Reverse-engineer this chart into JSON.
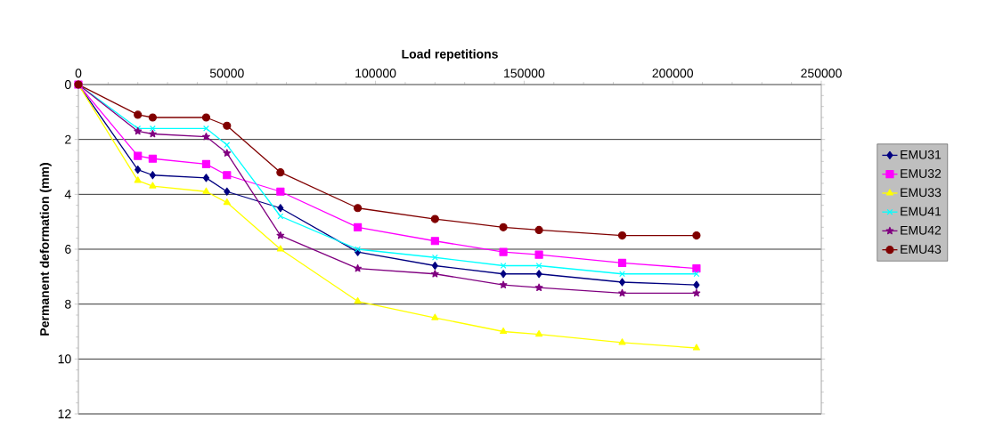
{
  "chart_data": {
    "type": "line",
    "xlabel": "Load repetitions",
    "ylabel": "Permanent deformation (mm)",
    "x": [
      0,
      20000,
      25000,
      43000,
      50000,
      68000,
      94000,
      120000,
      143000,
      155000,
      183000,
      208000
    ],
    "xlim": [
      0,
      250000
    ],
    "xticks": [
      0,
      50000,
      100000,
      150000,
      200000,
      250000
    ],
    "ylim": [
      12,
      0
    ],
    "yticks": [
      0,
      2,
      4,
      6,
      8,
      10,
      12
    ],
    "grid": "y",
    "legend": "right",
    "line_style": "solid",
    "series": [
      {
        "name": "EMU31",
        "color": "#000080",
        "marker": "diamond",
        "values": [
          0,
          3.1,
          3.3,
          3.4,
          3.9,
          4.5,
          6.1,
          6.6,
          6.9,
          6.9,
          7.2,
          7.3
        ]
      },
      {
        "name": "EMU32",
        "color": "#ff00ff",
        "marker": "square",
        "values": [
          0,
          2.6,
          2.7,
          2.9,
          3.3,
          3.9,
          5.2,
          5.7,
          6.1,
          6.2,
          6.5,
          6.7
        ]
      },
      {
        "name": "EMU33",
        "color": "#ffff00",
        "marker": "triangle",
        "values": [
          0,
          3.5,
          3.7,
          3.9,
          4.3,
          6.0,
          7.9,
          8.5,
          9.0,
          9.1,
          9.4,
          9.6
        ]
      },
      {
        "name": "EMU41",
        "color": "#00ffff",
        "marker": "cross",
        "values": [
          0,
          1.6,
          1.6,
          1.6,
          2.2,
          4.8,
          6.0,
          6.3,
          6.6,
          6.6,
          6.9,
          6.9
        ]
      },
      {
        "name": "EMU42",
        "color": "#800080",
        "marker": "star",
        "values": [
          0,
          1.7,
          1.8,
          1.9,
          2.5,
          5.5,
          6.7,
          6.9,
          7.3,
          7.4,
          7.6,
          7.6
        ]
      },
      {
        "name": "EMU43",
        "color": "#800000",
        "marker": "circle",
        "values": [
          0,
          1.1,
          1.2,
          1.2,
          1.5,
          3.2,
          4.5,
          4.9,
          5.2,
          5.3,
          5.5,
          5.5
        ]
      }
    ]
  }
}
